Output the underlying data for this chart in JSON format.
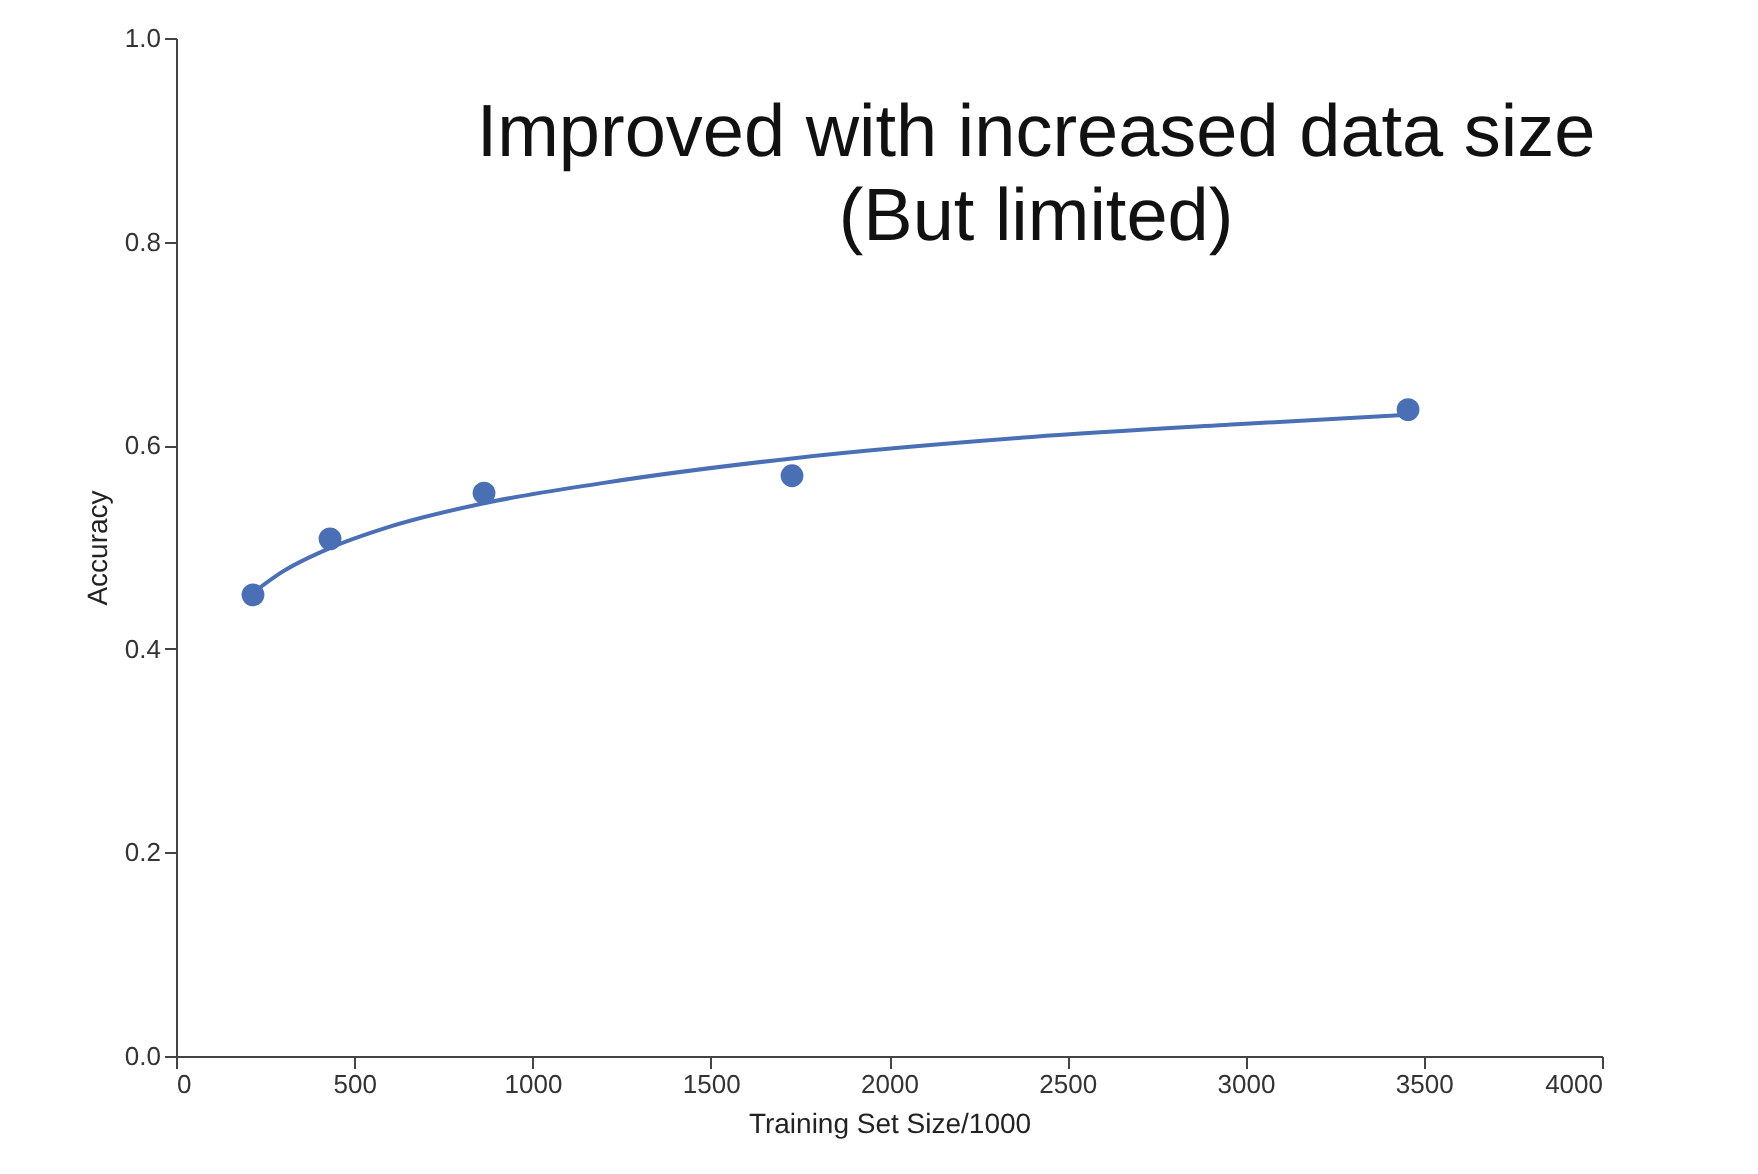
{
  "chart_data": {
    "type": "scatter",
    "xlabel": "Training Set Size/1000",
    "ylabel": "Accuracy",
    "xlim": [
      0,
      4000
    ],
    "xticks": [
      0,
      500,
      1000,
      1500,
      2000,
      2500,
      3000,
      3500,
      4000
    ],
    "ylim": [
      0,
      1
    ],
    "yticks": [
      {
        "value": 0,
        "label": "0.0"
      },
      0.2,
      0.4,
      0.6,
      0.8,
      {
        "value": 1,
        "label": "1.0"
      }
    ],
    "grid": false,
    "annotations": [
      "Improved with increased data size\n(But limited)"
    ],
    "series": [
      {
        "color": "#4a6fb5",
        "marker": "circle",
        "x": [
          216,
          432,
          864,
          1728,
          3456
        ],
        "values": [
          0.453,
          0.508,
          0.553,
          0.57,
          0.635
        ]
      },
      {
        "type": "line",
        "color": "#4a6fb5",
        "marker": "none",
        "line_style": "solid",
        "x": [
          216,
          300,
          432,
          600,
          864,
          1200,
          1728,
          2400,
          3000,
          3456
        ],
        "values": [
          0.455,
          0.476,
          0.499,
          0.52,
          0.543,
          0.563,
          0.587,
          0.608,
          0.621,
          0.63
        ]
      }
    ]
  }
}
